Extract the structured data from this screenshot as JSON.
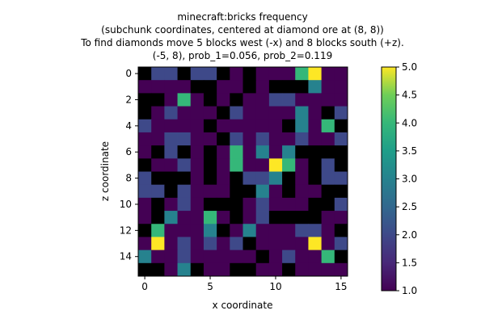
{
  "chart_data": {
    "type": "heatmap",
    "title_lines": [
      "minecraft:bricks frequency",
      "(subchunk coordinates, centered at diamond ore at (8, 8))",
      "To find diamonds move 5 blocks west (-x) and 8 blocks south (+z).",
      "(-5, 8), prob_1=0.056, prob_2=0.119"
    ],
    "xlabel": "x coordinate",
    "ylabel": "z coordinate",
    "xticks": [
      0,
      5,
      10,
      15
    ],
    "yticks": [
      0,
      2,
      4,
      6,
      8,
      10,
      12,
      14
    ],
    "colorbar": {
      "min": 1.0,
      "max": 5.0,
      "ticks": [
        "1.0",
        "1.5",
        "2.0",
        "2.5",
        "3.0",
        "3.5",
        "4.0",
        "4.5",
        "5.0"
      ],
      "colormap": "viridis",
      "empty_color": "#000000"
    },
    "note": "0 = no occurrence (drawn black)",
    "grid": [
      [
        0,
        2,
        2,
        0,
        2,
        2,
        0,
        1,
        0,
        1,
        1,
        1,
        4,
        5,
        1,
        1
      ],
      [
        1,
        1,
        1,
        1,
        0,
        0,
        1,
        1,
        0,
        1,
        0,
        0,
        0,
        3,
        1,
        1
      ],
      [
        0,
        0,
        1,
        4,
        1,
        0,
        1,
        0,
        1,
        1,
        2,
        2,
        1,
        1,
        1,
        1
      ],
      [
        0,
        1,
        2,
        1,
        1,
        1,
        0,
        2,
        1,
        1,
        1,
        1,
        3,
        1,
        0,
        2
      ],
      [
        2,
        1,
        1,
        1,
        1,
        0,
        1,
        1,
        1,
        1,
        1,
        0,
        3,
        1,
        4,
        0
      ],
      [
        1,
        1,
        2,
        2,
        1,
        1,
        0,
        2,
        1,
        2,
        1,
        1,
        2,
        1,
        1,
        2
      ],
      [
        1,
        0,
        2,
        0,
        1,
        0,
        1,
        4,
        1,
        3,
        1,
        3,
        0,
        0,
        0,
        0
      ],
      [
        0,
        1,
        1,
        2,
        1,
        0,
        1,
        4,
        1,
        1,
        5,
        4,
        1,
        0,
        2,
        0
      ],
      [
        2,
        0,
        0,
        0,
        1,
        0,
        1,
        0,
        2,
        2,
        3,
        0,
        1,
        0,
        2,
        2
      ],
      [
        2,
        2,
        0,
        2,
        1,
        1,
        1,
        0,
        0,
        3,
        1,
        0,
        1,
        1,
        0,
        0
      ],
      [
        1,
        0,
        1,
        2,
        1,
        0,
        0,
        0,
        1,
        2,
        1,
        1,
        1,
        0,
        0,
        2
      ],
      [
        1,
        0,
        3,
        1,
        1,
        4,
        1,
        0,
        1,
        2,
        0,
        0,
        0,
        0,
        1,
        1
      ],
      [
        0,
        4,
        1,
        1,
        1,
        3,
        0,
        1,
        3,
        1,
        1,
        1,
        2,
        2,
        1,
        0
      ],
      [
        1,
        5,
        1,
        2,
        1,
        2,
        1,
        2,
        0,
        1,
        1,
        1,
        1,
        5,
        1,
        2
      ],
      [
        3,
        1,
        1,
        2,
        1,
        1,
        1,
        1,
        1,
        0,
        1,
        2,
        1,
        1,
        4,
        0
      ],
      [
        0,
        0,
        1,
        3,
        0,
        1,
        1,
        0,
        0,
        1,
        1,
        0,
        1,
        1,
        1,
        1
      ]
    ]
  }
}
